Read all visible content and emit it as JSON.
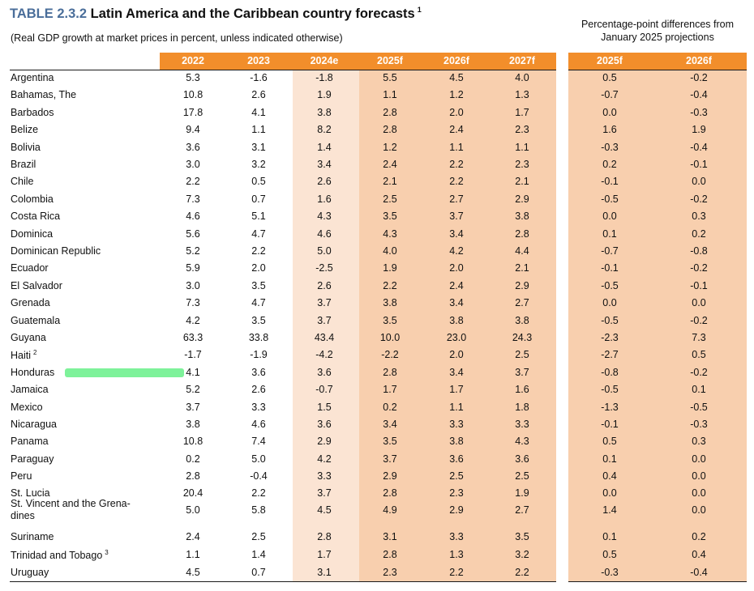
{
  "title": {
    "label": "TABLE 2.3.2",
    "text": "Latin America and the Caribbean country forecasts",
    "note": "1"
  },
  "subtitle": "(Real GDP growth at market prices in percent, unless indicated otherwise)",
  "diff_note": "Percentage-point differences from January 2025 projections",
  "colors": {
    "header": "#f28e2b",
    "estimate_band": "#fbe4d3",
    "forecast_band": "#f8cfae",
    "title_label": "#4a6e9a",
    "highlight": "#7ef29a"
  },
  "headers": [
    "2022",
    "2023",
    "2024e",
    "2025f",
    "2026f",
    "2027f"
  ],
  "diff_headers": [
    "2025f",
    "2026f"
  ],
  "rows": [
    {
      "name": "Argentina",
      "v": [
        "5.3",
        "-1.6",
        "-1.8",
        "5.5",
        "4.5",
        "4.0"
      ],
      "d": [
        "0.5",
        "-0.2"
      ]
    },
    {
      "name": "Bahamas, The",
      "v": [
        "10.8",
        "2.6",
        "1.9",
        "1.1",
        "1.2",
        "1.3"
      ],
      "d": [
        "-0.7",
        "-0.4"
      ]
    },
    {
      "name": "Barbados",
      "v": [
        "17.8",
        "4.1",
        "3.8",
        "2.8",
        "2.0",
        "1.7"
      ],
      "d": [
        "0.0",
        "-0.3"
      ]
    },
    {
      "name": "Belize",
      "v": [
        "9.4",
        "1.1",
        "8.2",
        "2.8",
        "2.4",
        "2.3"
      ],
      "d": [
        "1.6",
        "1.9"
      ]
    },
    {
      "name": "Bolivia",
      "v": [
        "3.6",
        "3.1",
        "1.4",
        "1.2",
        "1.1",
        "1.1"
      ],
      "d": [
        "-0.3",
        "-0.4"
      ]
    },
    {
      "name": "Brazil",
      "v": [
        "3.0",
        "3.2",
        "3.4",
        "2.4",
        "2.2",
        "2.3"
      ],
      "d": [
        "0.2",
        "-0.1"
      ]
    },
    {
      "name": "Chile",
      "v": [
        "2.2",
        "0.5",
        "2.6",
        "2.1",
        "2.2",
        "2.1"
      ],
      "d": [
        "-0.1",
        "0.0"
      ]
    },
    {
      "name": "Colombia",
      "v": [
        "7.3",
        "0.7",
        "1.6",
        "2.5",
        "2.7",
        "2.9"
      ],
      "d": [
        "-0.5",
        "-0.2"
      ]
    },
    {
      "name": "Costa Rica",
      "v": [
        "4.6",
        "5.1",
        "4.3",
        "3.5",
        "3.7",
        "3.8"
      ],
      "d": [
        "0.0",
        "0.3"
      ]
    },
    {
      "name": "Dominica",
      "v": [
        "5.6",
        "4.7",
        "4.6",
        "4.3",
        "3.4",
        "2.8"
      ],
      "d": [
        "0.1",
        "0.2"
      ]
    },
    {
      "name": "Dominican Republic",
      "v": [
        "5.2",
        "2.2",
        "5.0",
        "4.0",
        "4.2",
        "4.4"
      ],
      "d": [
        "-0.7",
        "-0.8"
      ]
    },
    {
      "name": "Ecuador",
      "v": [
        "5.9",
        "2.0",
        "-2.5",
        "1.9",
        "2.0",
        "2.1"
      ],
      "d": [
        "-0.1",
        "-0.2"
      ]
    },
    {
      "name": "El Salvador",
      "v": [
        "3.0",
        "3.5",
        "2.6",
        "2.2",
        "2.4",
        "2.9"
      ],
      "d": [
        "-0.5",
        "-0.1"
      ]
    },
    {
      "name": "Grenada",
      "v": [
        "7.3",
        "4.7",
        "3.7",
        "3.8",
        "3.4",
        "2.7"
      ],
      "d": [
        "0.0",
        "0.0"
      ]
    },
    {
      "name": "Guatemala",
      "v": [
        "4.2",
        "3.5",
        "3.7",
        "3.5",
        "3.8",
        "3.8"
      ],
      "d": [
        "-0.5",
        "-0.2"
      ]
    },
    {
      "name": "Guyana",
      "v": [
        "63.3",
        "33.8",
        "43.4",
        "10.0",
        "23.0",
        "24.3"
      ],
      "d": [
        "-2.3",
        "7.3"
      ]
    },
    {
      "name": "Haiti",
      "note": "2",
      "v": [
        "-1.7",
        "-1.9",
        "-4.2",
        "-2.2",
        "2.0",
        "2.5"
      ],
      "d": [
        "-2.7",
        "0.5"
      ]
    },
    {
      "name": "Honduras",
      "v": [
        "4.1",
        "3.6",
        "3.6",
        "2.8",
        "3.4",
        "3.7"
      ],
      "d": [
        "-0.8",
        "-0.2"
      ]
    },
    {
      "name": "Jamaica",
      "v": [
        "5.2",
        "2.6",
        "-0.7",
        "1.7",
        "1.7",
        "1.6"
      ],
      "d": [
        "-0.5",
        "0.1"
      ]
    },
    {
      "name": "Mexico",
      "v": [
        "3.7",
        "3.3",
        "1.5",
        "0.2",
        "1.1",
        "1.8"
      ],
      "d": [
        "-1.3",
        "-0.5"
      ]
    },
    {
      "name": "Nicaragua",
      "v": [
        "3.8",
        "4.6",
        "3.6",
        "3.4",
        "3.3",
        "3.3"
      ],
      "d": [
        "-0.1",
        "-0.3"
      ]
    },
    {
      "name": "Panama",
      "v": [
        "10.8",
        "7.4",
        "2.9",
        "3.5",
        "3.8",
        "4.3"
      ],
      "d": [
        "0.5",
        "0.3"
      ]
    },
    {
      "name": "Paraguay",
      "v": [
        "0.2",
        "5.0",
        "4.2",
        "3.7",
        "3.6",
        "3.6"
      ],
      "d": [
        "0.1",
        "0.0"
      ]
    },
    {
      "name": "Peru",
      "v": [
        "2.8",
        "-0.4",
        "3.3",
        "2.9",
        "2.5",
        "2.5"
      ],
      "d": [
        "0.4",
        "0.0"
      ]
    },
    {
      "name": "St. Lucia",
      "v": [
        "20.4",
        "2.2",
        "3.7",
        "2.8",
        "2.3",
        "1.9"
      ],
      "d": [
        "0.0",
        "0.0"
      ]
    },
    {
      "name": "St. Vincent and the Grena-dines",
      "v": [
        "5.0",
        "5.8",
        "4.5",
        "4.9",
        "2.9",
        "2.7"
      ],
      "d": [
        "1.4",
        "0.0"
      ]
    },
    {
      "name": "Suriname",
      "v": [
        "2.4",
        "2.5",
        "2.8",
        "3.1",
        "3.3",
        "3.5"
      ],
      "d": [
        "0.1",
        "0.2"
      ]
    },
    {
      "name": "Trinidad and Tobago",
      "note": "3",
      "v": [
        "1.1",
        "1.4",
        "1.7",
        "2.8",
        "1.3",
        "3.2"
      ],
      "d": [
        "0.5",
        "0.4"
      ]
    },
    {
      "name": "Uruguay",
      "v": [
        "4.5",
        "0.7",
        "3.1",
        "2.3",
        "2.2",
        "2.2"
      ],
      "d": [
        "-0.3",
        "-0.4"
      ]
    }
  ]
}
